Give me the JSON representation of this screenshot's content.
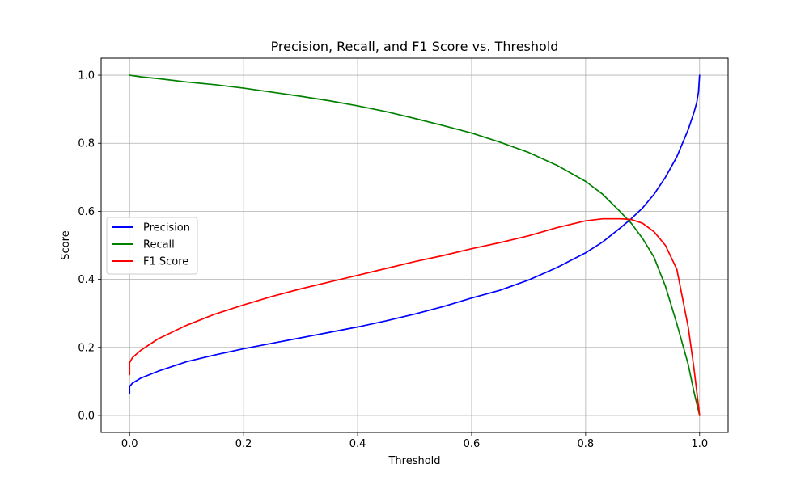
{
  "chart_data": {
    "type": "line",
    "title": "Precision, Recall, and F1 Score vs. Threshold",
    "xlabel": "Threshold",
    "ylabel": "Score",
    "xlim": [
      -0.05,
      1.05
    ],
    "ylim": [
      -0.05,
      1.05
    ],
    "xticks": [
      0.0,
      0.2,
      0.4,
      0.6,
      0.8,
      1.0
    ],
    "xtick_labels": [
      "0.0",
      "0.2",
      "0.4",
      "0.6",
      "0.8",
      "1.0"
    ],
    "yticks": [
      0.0,
      0.2,
      0.4,
      0.6,
      0.8,
      1.0
    ],
    "ytick_labels": [
      "0.0",
      "0.2",
      "0.4",
      "0.6",
      "0.8",
      "1.0"
    ],
    "grid": true,
    "legend_position": "center-left",
    "series": [
      {
        "name": "Precision",
        "color": "#0000ff",
        "x": [
          0.0,
          0.0,
          0.005,
          0.02,
          0.05,
          0.1,
          0.15,
          0.2,
          0.25,
          0.3,
          0.35,
          0.4,
          0.45,
          0.5,
          0.55,
          0.6,
          0.65,
          0.7,
          0.75,
          0.8,
          0.83,
          0.86,
          0.88,
          0.9,
          0.92,
          0.94,
          0.96,
          0.98,
          0.99,
          0.995,
          0.998,
          1.0
        ],
        "y": [
          0.065,
          0.085,
          0.095,
          0.11,
          0.13,
          0.158,
          0.178,
          0.196,
          0.212,
          0.228,
          0.244,
          0.26,
          0.278,
          0.298,
          0.32,
          0.345,
          0.368,
          0.398,
          0.435,
          0.478,
          0.51,
          0.55,
          0.578,
          0.61,
          0.65,
          0.7,
          0.76,
          0.84,
          0.89,
          0.92,
          0.95,
          1.0
        ]
      },
      {
        "name": "Recall",
        "color": "#008000",
        "x": [
          0.0,
          0.02,
          0.05,
          0.1,
          0.15,
          0.2,
          0.25,
          0.3,
          0.35,
          0.4,
          0.45,
          0.5,
          0.55,
          0.6,
          0.65,
          0.7,
          0.75,
          0.8,
          0.83,
          0.86,
          0.88,
          0.9,
          0.92,
          0.94,
          0.96,
          0.98,
          0.99,
          1.0
        ],
        "y": [
          1.0,
          0.995,
          0.99,
          0.98,
          0.972,
          0.962,
          0.95,
          0.938,
          0.925,
          0.91,
          0.893,
          0.873,
          0.852,
          0.83,
          0.803,
          0.773,
          0.735,
          0.688,
          0.65,
          0.6,
          0.565,
          0.52,
          0.465,
          0.38,
          0.27,
          0.15,
          0.07,
          0.0
        ]
      },
      {
        "name": "F1 Score",
        "color": "#ff0000",
        "x": [
          0.0,
          0.0,
          0.005,
          0.02,
          0.05,
          0.1,
          0.15,
          0.2,
          0.25,
          0.3,
          0.35,
          0.4,
          0.45,
          0.5,
          0.55,
          0.6,
          0.65,
          0.7,
          0.75,
          0.8,
          0.83,
          0.86,
          0.88,
          0.9,
          0.92,
          0.94,
          0.96,
          0.98,
          0.99,
          1.0
        ],
        "y": [
          0.12,
          0.155,
          0.17,
          0.192,
          0.225,
          0.265,
          0.298,
          0.325,
          0.35,
          0.372,
          0.392,
          0.412,
          0.432,
          0.452,
          0.47,
          0.49,
          0.508,
          0.528,
          0.552,
          0.572,
          0.578,
          0.578,
          0.576,
          0.565,
          0.54,
          0.5,
          0.43,
          0.26,
          0.14,
          0.0
        ]
      }
    ]
  }
}
